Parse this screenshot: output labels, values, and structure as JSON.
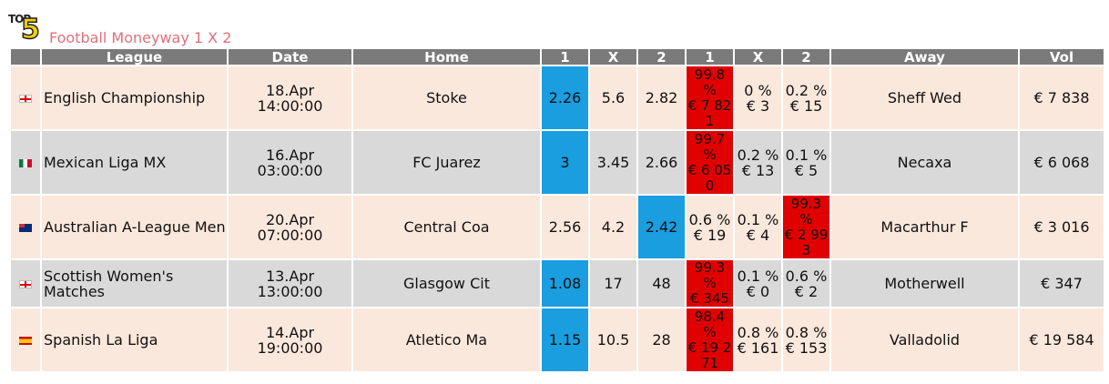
{
  "logo": {
    "top_text": "TOP",
    "number": "5"
  },
  "title": "Football Moneyway 1 X 2",
  "headers": {
    "flag": "",
    "league": "League",
    "date": "Date",
    "home": "Home",
    "odds_1": "1",
    "odds_x": "X",
    "odds_2": "2",
    "money_1": "1",
    "money_x": "X",
    "money_2": "2",
    "away": "Away",
    "vol": "Vol"
  },
  "rows": [
    {
      "flag": "england-flag-icon",
      "league": "English Championship",
      "date": "18.Apr",
      "time": "14:00:00",
      "home": "Stoke",
      "o1": "2.26",
      "ox": "5.6",
      "o2": "2.82",
      "m1_pct": "99.8 %",
      "m1_amt": "€ 7 821",
      "mx_pct": "0 %",
      "mx_amt": "€ 3",
      "m2_pct": "0.2 %",
      "m2_amt": "€ 15",
      "away": "Sheff Wed",
      "vol": "€ 7 838"
    },
    {
      "flag": "mexico-flag-icon",
      "league": "Mexican Liga MX",
      "date": "16.Apr",
      "time": "03:00:00",
      "home": "FC Juarez",
      "o1": "3",
      "ox": "3.45",
      "o2": "2.66",
      "m1_pct": "99.7 %",
      "m1_amt": "€ 6 050",
      "mx_pct": "0.2 %",
      "mx_amt": "€ 13",
      "m2_pct": "0.1 %",
      "m2_amt": "€ 5",
      "away": "Necaxa",
      "vol": "€ 6 068"
    },
    {
      "flag": "australia-flag-icon",
      "league": "Australian A-League Men",
      "date": "20.Apr",
      "time": "07:00:00",
      "home": "Central Coa",
      "o1": "2.56",
      "ox": "4.2",
      "o2": "2.42",
      "m1_pct": "0.6 %",
      "m1_amt": "€ 19",
      "mx_pct": "0.1 %",
      "mx_amt": "€ 4",
      "m2_pct": "99.3 %",
      "m2_amt": "€ 2 993",
      "away": "Macarthur F",
      "vol": "€ 3 016"
    },
    {
      "flag": "england-flag-icon",
      "league": "Scottish Women's Matches",
      "date": "13.Apr",
      "time": "13:00:00",
      "home": "Glasgow Cit",
      "o1": "1.08",
      "ox": "17",
      "o2": "48",
      "m1_pct": "99.3 %",
      "m1_amt": "€ 345",
      "mx_pct": "0.1 %",
      "mx_amt": "€ 0",
      "m2_pct": "0.6 %",
      "m2_amt": "€ 2",
      "away": "Motherwell",
      "vol": "€ 347"
    },
    {
      "flag": "spain-flag-icon",
      "league": "Spanish La Liga",
      "date": "14.Apr",
      "time": "19:00:00",
      "home": "Atletico Ma",
      "o1": "1.15",
      "ox": "10.5",
      "o2": "28",
      "m1_pct": "98.4 %",
      "m1_amt": "€ 19 271",
      "mx_pct": "0.8 %",
      "mx_amt": "€ 161",
      "m2_pct": "0.8 %",
      "m2_amt": "€ 153",
      "away": "Valladolid",
      "vol": "€ 19 584"
    }
  ],
  "colors": {
    "header_bg": "#7a7a7a",
    "row_light": "#fbe8dc",
    "row_grey": "#d9d9d9",
    "favorite_odds": "#1a9ee0",
    "hot_money": "#e00000",
    "title": "#e0707a"
  }
}
